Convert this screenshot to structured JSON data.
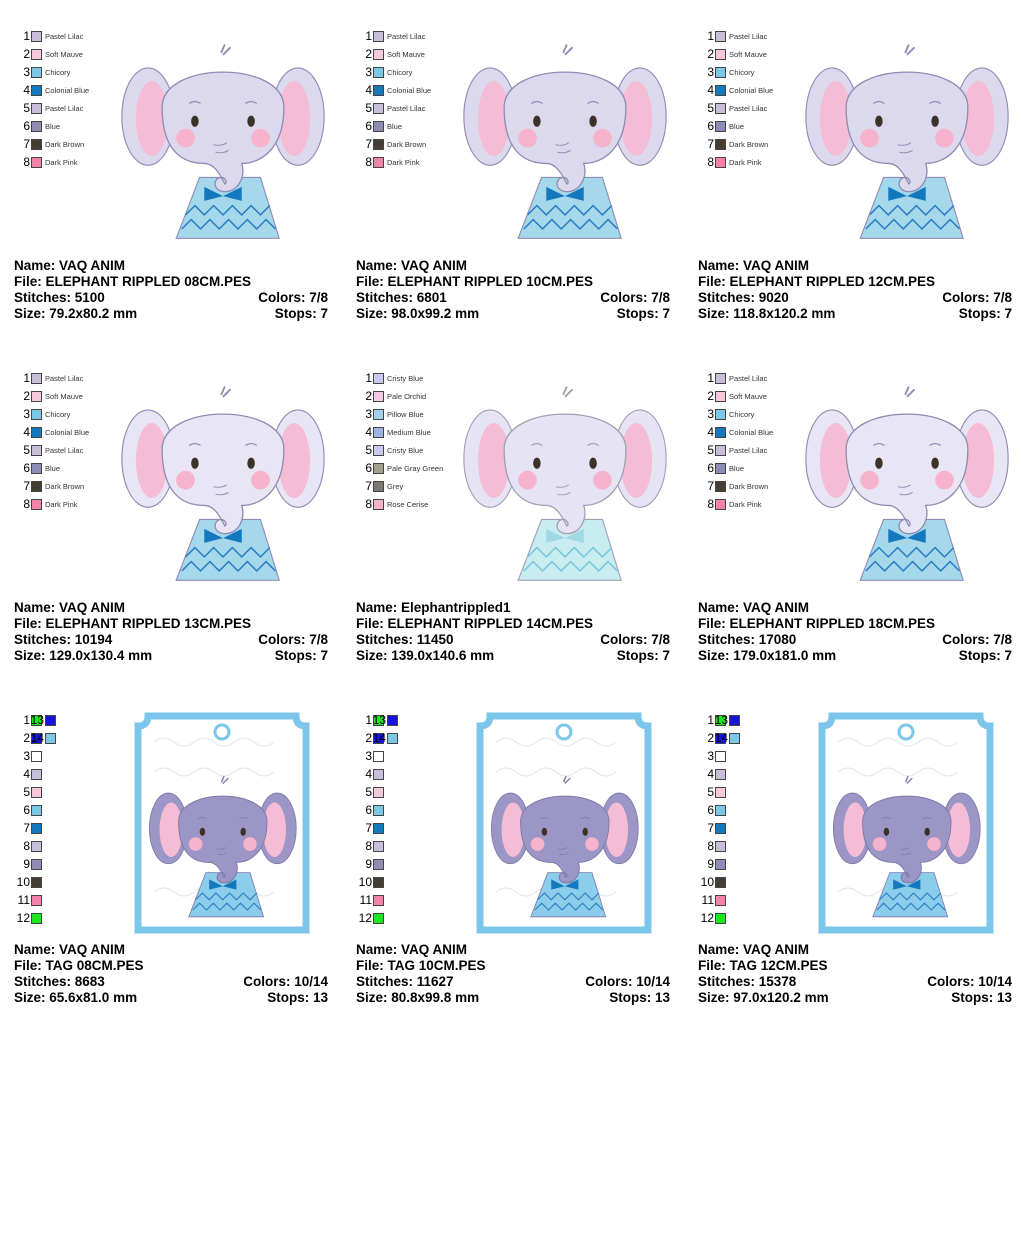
{
  "elephant_cards": [
    {
      "name": "VAQ ANIM",
      "file": "ELEPHANT RIPPLED 08CM.PES",
      "stitches": "5100",
      "colors": "7/8",
      "size": "79.2x80.2 mm",
      "stops": "7",
      "palette": [
        {
          "num": "1",
          "name": "Pastel Lilac",
          "hex": "#c8bedc"
        },
        {
          "num": "2",
          "name": "Soft Mauve",
          "hex": "#f5c8dc"
        },
        {
          "num": "3",
          "name": "Chicory",
          "hex": "#78c8e6"
        },
        {
          "num": "4",
          "name": "Colonial Blue",
          "hex": "#1478be"
        },
        {
          "num": "5",
          "name": "Pastel Lilac",
          "hex": "#c8bedc"
        },
        {
          "num": "6",
          "name": "Blue",
          "hex": "#8c8cb4"
        },
        {
          "num": "7",
          "name": "Dark Brown",
          "hex": "#463c32"
        },
        {
          "num": "8",
          "name": "Dark Pink",
          "hex": "#f582aa"
        }
      ]
    },
    {
      "name": "VAQ ANIM",
      "file": "ELEPHANT RIPPLED 10CM.PES",
      "stitches": "6801",
      "colors": "7/8",
      "size": "98.0x99.2 mm",
      "stops": "7",
      "palette": [
        {
          "num": "1",
          "name": "Pastel Lilac",
          "hex": "#c8bedc"
        },
        {
          "num": "2",
          "name": "Soft Mauve",
          "hex": "#f5c8dc"
        },
        {
          "num": "3",
          "name": "Chicory",
          "hex": "#78c8e6"
        },
        {
          "num": "4",
          "name": "Colonial Blue",
          "hex": "#1478be"
        },
        {
          "num": "5",
          "name": "Pastel Lilac",
          "hex": "#c8bedc"
        },
        {
          "num": "6",
          "name": "Blue",
          "hex": "#8c8cb4"
        },
        {
          "num": "7",
          "name": "Dark Brown",
          "hex": "#463c32"
        },
        {
          "num": "8",
          "name": "Dark Pink",
          "hex": "#f582aa"
        }
      ]
    },
    {
      "name": "VAQ ANIM",
      "file": "ELEPHANT RIPPLED 12CM.PES",
      "stitches": "9020",
      "colors": "7/8",
      "size": "118.8x120.2 mm",
      "stops": "7",
      "palette": [
        {
          "num": "1",
          "name": "Pastel Lilac",
          "hex": "#c8bedc"
        },
        {
          "num": "2",
          "name": "Soft Mauve",
          "hex": "#f5c8dc"
        },
        {
          "num": "3",
          "name": "Chicory",
          "hex": "#78c8e6"
        },
        {
          "num": "4",
          "name": "Colonial Blue",
          "hex": "#1478be"
        },
        {
          "num": "5",
          "name": "Pastel Lilac",
          "hex": "#c8bedc"
        },
        {
          "num": "6",
          "name": "Blue",
          "hex": "#8c8cb4"
        },
        {
          "num": "7",
          "name": "Dark Brown",
          "hex": "#463c32"
        },
        {
          "num": "8",
          "name": "Dark Pink",
          "hex": "#f582aa"
        }
      ]
    },
    {
      "name": "VAQ ANIM",
      "file": "ELEPHANT RIPPLED 13CM.PES",
      "stitches": "10194",
      "colors": "7/8",
      "size": "129.0x130.4 mm",
      "stops": "7",
      "palette": [
        {
          "num": "1",
          "name": "Pastel Lilac",
          "hex": "#c8bedc"
        },
        {
          "num": "2",
          "name": "Soft Mauve",
          "hex": "#f5c8dc"
        },
        {
          "num": "3",
          "name": "Chicory",
          "hex": "#78c8e6"
        },
        {
          "num": "4",
          "name": "Colonial Blue",
          "hex": "#1478be"
        },
        {
          "num": "5",
          "name": "Pastel Lilac",
          "hex": "#c8bedc"
        },
        {
          "num": "6",
          "name": "Blue",
          "hex": "#8c8cb4"
        },
        {
          "num": "7",
          "name": "Dark Brown",
          "hex": "#463c32"
        },
        {
          "num": "8",
          "name": "Dark Pink",
          "hex": "#f582aa"
        }
      ]
    },
    {
      "name": "Elephantrippled1",
      "file": "ELEPHANT RIPPLED 14CM.PES",
      "stitches": "11450",
      "colors": "7/8",
      "size": "139.0x140.6 mm",
      "stops": "7",
      "palette": [
        {
          "num": "1",
          "name": "Cristy Blue",
          "hex": "#c8c8f0"
        },
        {
          "num": "2",
          "name": "Pale Orchid",
          "hex": "#f5c8e6"
        },
        {
          "num": "3",
          "name": "Pillow Blue",
          "hex": "#a0d2f0"
        },
        {
          "num": "4",
          "name": "Medium Blue",
          "hex": "#a0b4e6"
        },
        {
          "num": "5",
          "name": "Cristy Blue",
          "hex": "#c8c8f0"
        },
        {
          "num": "6",
          "name": "Pale Gray Green",
          "hex": "#a0a08c"
        },
        {
          "num": "7",
          "name": "Grey",
          "hex": "#7d786e"
        },
        {
          "num": "8",
          "name": "Rose Cerise",
          "hex": "#f5b4c8"
        }
      ]
    },
    {
      "name": "VAQ ANIM",
      "file": "ELEPHANT RIPPLED 18CM.PES",
      "stitches": "17080",
      "colors": "7/8",
      "size": "179.0x181.0 mm",
      "stops": "7",
      "palette": [
        {
          "num": "1",
          "name": "Pastel Lilac",
          "hex": "#c8bedc"
        },
        {
          "num": "2",
          "name": "Soft Mauve",
          "hex": "#f5c8dc"
        },
        {
          "num": "3",
          "name": "Chicory",
          "hex": "#78c8e6"
        },
        {
          "num": "4",
          "name": "Colonial Blue",
          "hex": "#1478be"
        },
        {
          "num": "5",
          "name": "Pastel Lilac",
          "hex": "#c8bedc"
        },
        {
          "num": "6",
          "name": "Blue",
          "hex": "#8c8cb4"
        },
        {
          "num": "7",
          "name": "Dark Brown",
          "hex": "#463c32"
        },
        {
          "num": "8",
          "name": "Dark Pink",
          "hex": "#f582aa"
        }
      ]
    }
  ],
  "tag_cards": [
    {
      "name": "VAQ ANIM",
      "file": "TAG 08CM.PES",
      "stitches": "8683",
      "colors": "10/14",
      "size": "65.6x81.0 mm",
      "stops": "13"
    },
    {
      "name": "VAQ ANIM",
      "file": "TAG 10CM.PES",
      "stitches": "11627",
      "colors": "10/14",
      "size": "80.8x99.8 mm",
      "stops": "13"
    },
    {
      "name": "VAQ ANIM",
      "file": "TAG 12CM.PES",
      "stitches": "15378",
      "colors": "10/14",
      "size": "97.0x120.2 mm",
      "stops": "13"
    }
  ],
  "tag_palette": [
    {
      "num": "1",
      "hex": "#1ee61e"
    },
    {
      "num": "2",
      "hex": "#1414dc"
    },
    {
      "num": "3",
      "hex": "#ffffff"
    },
    {
      "num": "4",
      "hex": "#c8bedc"
    },
    {
      "num": "5",
      "hex": "#f5c8dc"
    },
    {
      "num": "6",
      "hex": "#78c8e6"
    },
    {
      "num": "7",
      "hex": "#1478be"
    },
    {
      "num": "8",
      "hex": "#c8bedc"
    },
    {
      "num": "9",
      "hex": "#8c8cb4"
    },
    {
      "num": "10",
      "hex": "#463c32"
    },
    {
      "num": "11",
      "hex": "#f582aa"
    },
    {
      "num": "12",
      "hex": "#1ee61e"
    },
    {
      "num": "13",
      "hex": "#1414dc"
    },
    {
      "num": "14",
      "hex": "#78c8e6"
    }
  ],
  "labels": {
    "name": "Name:",
    "file": "File:",
    "stitches": "Stitches:",
    "colors": "Colors:",
    "size": "Size:",
    "stops": "Stops:"
  }
}
